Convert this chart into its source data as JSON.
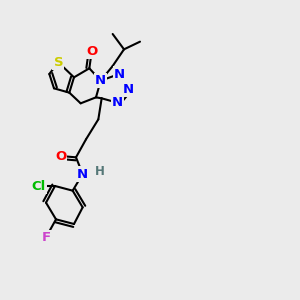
{
  "background_color": "#ebebeb",
  "atom_colors": {
    "S": "#cccc00",
    "O": "#ff0000",
    "N": "#0000ff",
    "Cl": "#00bb00",
    "F": "#cc44cc",
    "C": "#000000",
    "H": "#557777"
  }
}
